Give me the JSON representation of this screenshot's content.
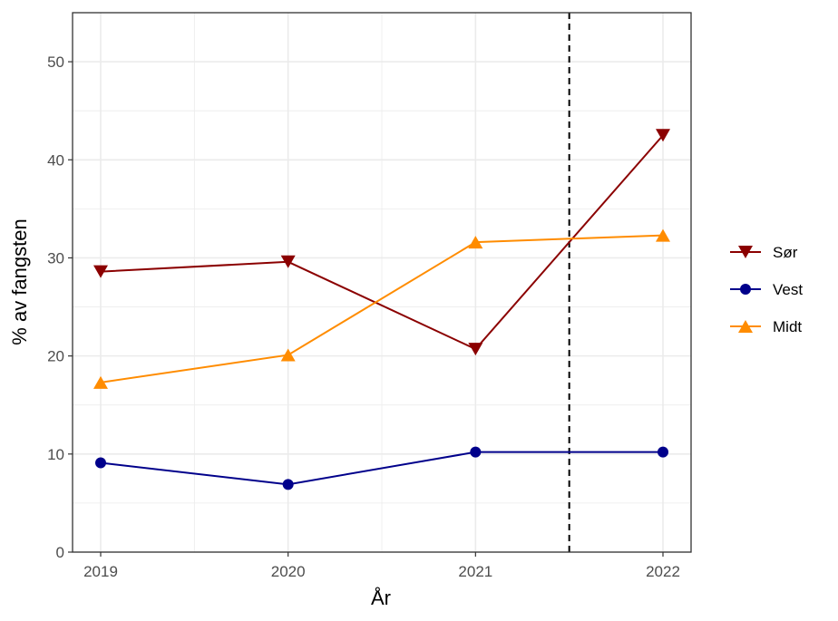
{
  "chart_data": {
    "type": "line",
    "title": "",
    "xlabel": "År",
    "ylabel": "% av fangsten",
    "x": [
      2019,
      2020,
      2021,
      2022
    ],
    "x_tick_labels": [
      "2019",
      "2020",
      "2021",
      "2022"
    ],
    "xlim": [
      2018.85,
      2022.15
    ],
    "ylim": [
      0,
      55
    ],
    "y_ticks": [
      0,
      10,
      20,
      30,
      40,
      50
    ],
    "y_tick_labels": [
      "0",
      "10",
      "20",
      "30",
      "40",
      "50"
    ],
    "grid": true,
    "legend_position": "right",
    "reference_line": {
      "axis": "x",
      "value": 2021.5,
      "style": "dashed",
      "color": "#000000"
    },
    "series": [
      {
        "name": "Sør",
        "values": [
          28.6,
          29.6,
          20.7,
          42.5
        ],
        "color": "#8b0000",
        "marker": "triangle-down"
      },
      {
        "name": "Vest",
        "values": [
          9.1,
          6.9,
          10.2,
          10.2
        ],
        "color": "#00008b",
        "marker": "circle"
      },
      {
        "name": "Midt",
        "values": [
          17.3,
          20.1,
          31.6,
          32.3
        ],
        "color": "#ff8c00",
        "marker": "triangle-up"
      }
    ]
  }
}
